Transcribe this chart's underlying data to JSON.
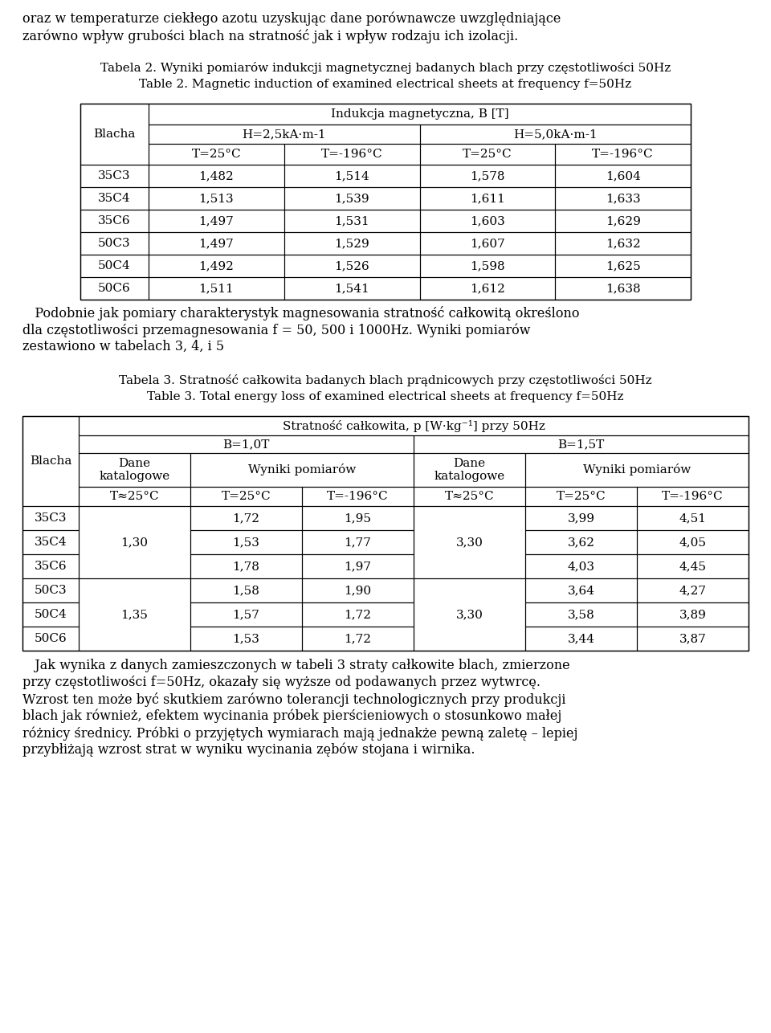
{
  "intro_text_lines": [
    "oraz w temperaturze ciekłego azotu uzyskując dane porównawcze uwzględniające",
    "zarówno wpływ grubości blach na stratność jak i wpływ rodzaju ich izolacji."
  ],
  "table2_caption_pl": "Tabela 2. Wyniki pomiarów indukcji magnetycznej badanych blach przy częstotliwości 50Hz",
  "table2_caption_en": "Table 2. Magnetic induction of examined electrical sheets at frequency f=50Hz",
  "table2_header_main": "Indukcja magnetyczna, B [T]",
  "table2_header_h1": "H=2,5kA·m-1",
  "table2_header_h2": "H=5,0kA·m-1",
  "table2_col_blacha": "Blacha",
  "table2_subheaders": [
    "T=25°C",
    "T=-196°C",
    "T=25°C",
    "T=-196°C"
  ],
  "table2_rows": [
    [
      "35C3",
      "1,482",
      "1,514",
      "1,578",
      "1,604"
    ],
    [
      "35C4",
      "1,513",
      "1,539",
      "1,611",
      "1,633"
    ],
    [
      "35C6",
      "1,497",
      "1,531",
      "1,603",
      "1,629"
    ],
    [
      "50C3",
      "1,497",
      "1,529",
      "1,607",
      "1,632"
    ],
    [
      "50C4",
      "1,492",
      "1,526",
      "1,598",
      "1,625"
    ],
    [
      "50C6",
      "1,511",
      "1,541",
      "1,612",
      "1,638"
    ]
  ],
  "between_text_lines": [
    "   Podobnie jak pomiary charakterystyk magnesowania stratność całkowitą określono",
    "dla częstotliwości przemagnesowania f = 50, 500 i 1000Hz. Wyniki pomiarów",
    "zestawiono w tabelach 3, 4, i 5"
  ],
  "table3_caption_pl": "Tabela 3. Stratność całkowita badanych blach prądnicowych przy częstotliwości 50Hz",
  "table3_caption_en": "Table 3. Total energy loss of examined electrical sheets at frequency f=50Hz",
  "table3_header_main": "Stratność całkowita, p [W·kg⁻¹] przy 50Hz",
  "table3_header_b1": "B=1,0T",
  "table3_header_b2": "B=1,5T",
  "table3_col_blacha": "Blacha",
  "table3_col_dane": "Dane\nkatalogowe",
  "table3_col_wyniki": "Wyniki pomiarów",
  "table3_subheaders": [
    "T≈25°C",
    "T=25°C",
    "T=-196°C",
    "T≈25°C",
    "T=25°C",
    "T=-196°C"
  ],
  "table3_rows": [
    [
      "35C3",
      "1,30",
      "1,72",
      "1,95",
      "3,30",
      "3,99",
      "4,51"
    ],
    [
      "35C4",
      "",
      "1,53",
      "1,77",
      "",
      "3,62",
      "4,05"
    ],
    [
      "35C6",
      "",
      "1,78",
      "1,97",
      "",
      "4,03",
      "4,45"
    ],
    [
      "50C3",
      "1,35",
      "1,58",
      "1,90",
      "3,30",
      "3,64",
      "4,27"
    ],
    [
      "50C4",
      "",
      "1,57",
      "1,72",
      "",
      "3,58",
      "3,89"
    ],
    [
      "50C6",
      "",
      "1,53",
      "1,72",
      "",
      "3,44",
      "3,87"
    ]
  ],
  "outro_text_lines": [
    "   Jak wynika z danych zamieszczonych w tabeli 3 straty całkowite blach, zmierzone",
    "przy częstotliwości f=50Hz, okazały się wyższe od podawanych przez wytwrcę.",
    "Wzrost ten może być skutkiem zarówno tolerancji technologicznych przy produkcji",
    "blach jak również, efektem wycinania próbek pierścieniowych o stosunkowo małej",
    "różnicy średnicy. Próbki o przyjętych wymiarach mają jednakże pewną zaletę – lepiej",
    "przybłiżają wzrost strat w wyniku wycinania zębów stojana i wirnika."
  ],
  "font_family": "DejaVu Serif",
  "font_size_body": 11.5,
  "font_size_table": 11.0,
  "font_size_caption": 11.0,
  "bg_color": "#ffffff",
  "text_color": "#000000",
  "table_border_color": "#000000"
}
